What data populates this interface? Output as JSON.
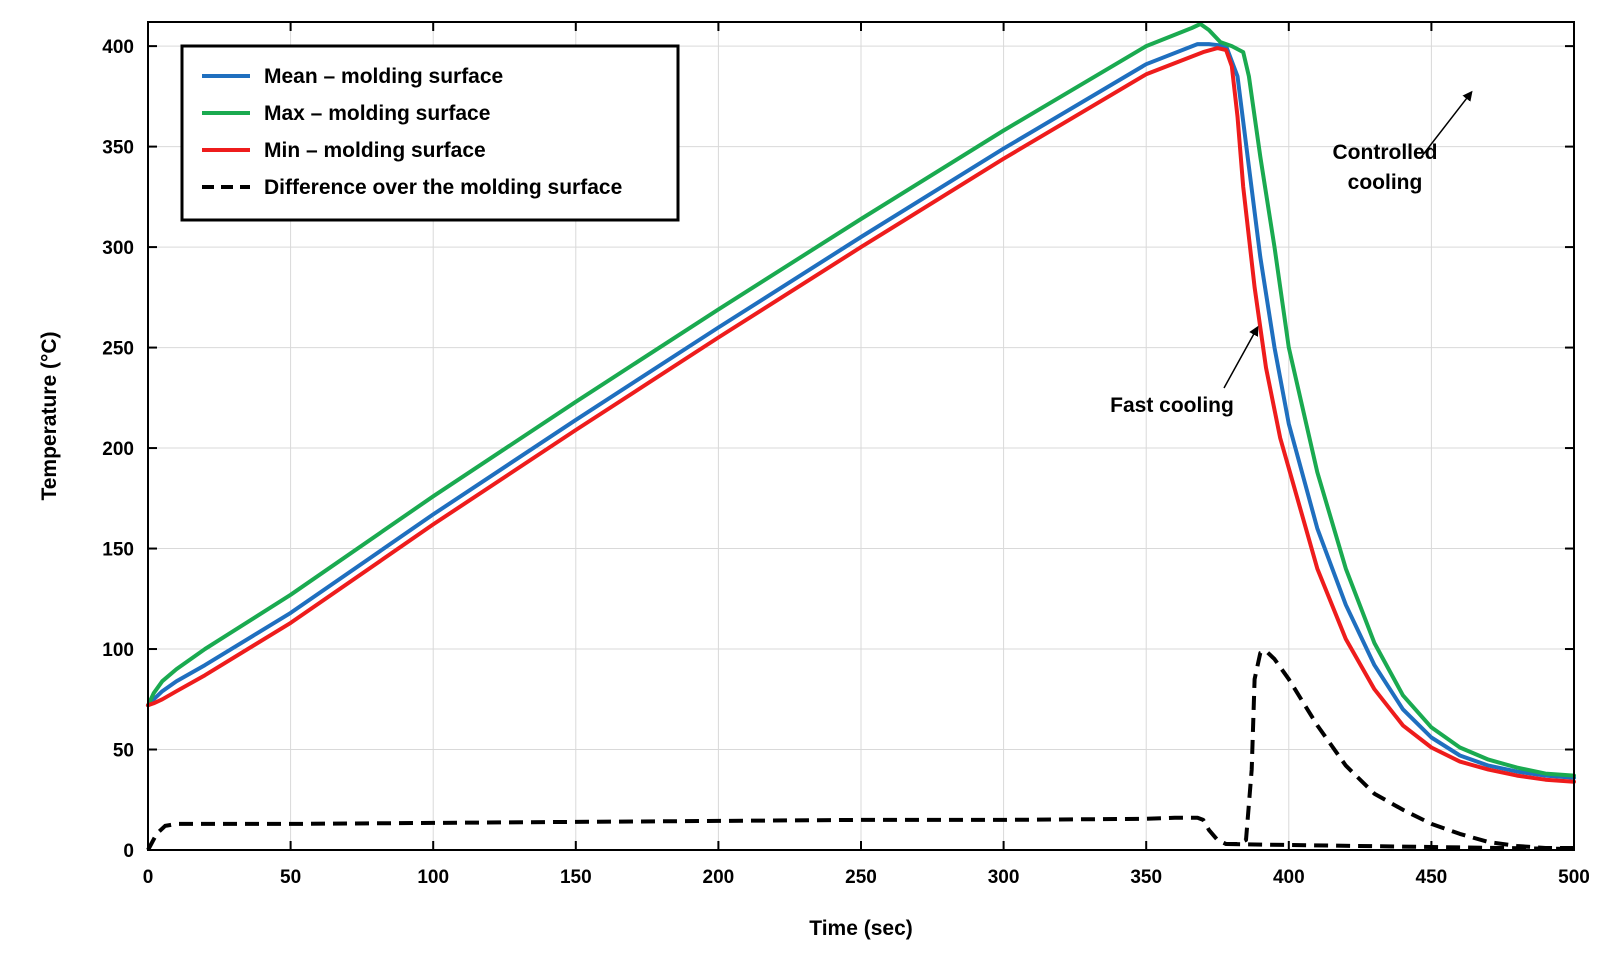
{
  "chart_data": {
    "type": "line",
    "title": "",
    "xlabel": "Time (sec)",
    "ylabel": "Temperature (°C)",
    "xlim": [
      0,
      500
    ],
    "ylim": [
      0,
      412
    ],
    "xticks": [
      0,
      50,
      100,
      150,
      200,
      250,
      300,
      350,
      400,
      450,
      500
    ],
    "yticks": [
      0,
      50,
      100,
      150,
      200,
      250,
      300,
      350,
      400
    ],
    "grid": true,
    "legend_position": "top-left",
    "series": [
      {
        "name": "Mean – molding surface",
        "color": "#1f6fbf",
        "style": "solid",
        "x": [
          0,
          2,
          5,
          10,
          20,
          50,
          100,
          150,
          200,
          250,
          300,
          350,
          368,
          372,
          378,
          382,
          386,
          390,
          395,
          400,
          410,
          420,
          430,
          440,
          450,
          460,
          470,
          480,
          490,
          500
        ],
        "y": [
          72,
          75,
          79,
          84,
          92,
          118,
          167,
          214,
          260,
          305,
          349,
          391,
          401,
          401,
          400,
          385,
          340,
          295,
          250,
          212,
          160,
          122,
          92,
          70,
          56,
          47,
          42,
          39,
          37,
          36
        ]
      },
      {
        "name": "Max – molding surface",
        "color": "#1aaa50",
        "style": "solid",
        "x": [
          0,
          2,
          5,
          10,
          20,
          50,
          100,
          150,
          200,
          250,
          300,
          350,
          366,
          369,
          372,
          376,
          380,
          384,
          386,
          390,
          395,
          400,
          410,
          420,
          430,
          440,
          450,
          460,
          470,
          480,
          490,
          500
        ],
        "y": [
          72,
          78,
          84,
          90,
          100,
          127,
          176,
          223,
          269,
          314,
          358,
          400,
          409,
          411,
          408,
          402,
          400,
          397,
          385,
          345,
          300,
          250,
          188,
          140,
          103,
          77,
          61,
          51,
          45,
          41,
          38,
          37
        ]
      },
      {
        "name": "Min – molding surface",
        "color": "#ee1c1c",
        "style": "solid",
        "x": [
          0,
          2,
          5,
          10,
          20,
          50,
          100,
          150,
          200,
          250,
          300,
          350,
          370,
          375,
          378,
          380,
          382,
          384,
          388,
          392,
          397,
          400,
          410,
          420,
          430,
          440,
          450,
          460,
          470,
          480,
          490,
          500
        ],
        "y": [
          72,
          73,
          75,
          79,
          87,
          113,
          162,
          209,
          255,
          300,
          344,
          386,
          397,
          399,
          398,
          390,
          365,
          330,
          280,
          240,
          205,
          190,
          140,
          105,
          80,
          62,
          51,
          44,
          40,
          37,
          35,
          34
        ]
      },
      {
        "name": "Difference over the molding surface",
        "color": "#000000",
        "style": "dashed",
        "x": [
          0,
          3,
          6,
          10,
          50,
          100,
          150,
          200,
          250,
          300,
          350,
          360,
          368,
          370,
          372,
          375,
          378,
          382,
          385,
          387,
          388,
          390,
          392,
          395,
          400,
          410,
          420,
          430,
          440,
          450,
          460,
          470,
          480,
          490,
          500
        ],
        "y": [
          0,
          8,
          12,
          13,
          13,
          13.5,
          14,
          14.5,
          15,
          15,
          15.5,
          16,
          16,
          15,
          10,
          5,
          3,
          3,
          5,
          40,
          85,
          98,
          99,
          95,
          85,
          62,
          42,
          28,
          20,
          13,
          8,
          4,
          2,
          1,
          1
        ]
      },
      {
        "name": "",
        "color": "#000000",
        "style": "dashed",
        "x": [
          378,
          400,
          450,
          500
        ],
        "y": [
          3,
          2.5,
          1.5,
          0.5
        ]
      }
    ],
    "annotations": [
      {
        "text_lines": [
          "Controlled",
          "cooling"
        ],
        "arrow_to": [
          464,
          377
        ]
      },
      {
        "text_lines": [
          "Fast cooling"
        ],
        "arrow_to": [
          389,
          260
        ]
      }
    ]
  }
}
